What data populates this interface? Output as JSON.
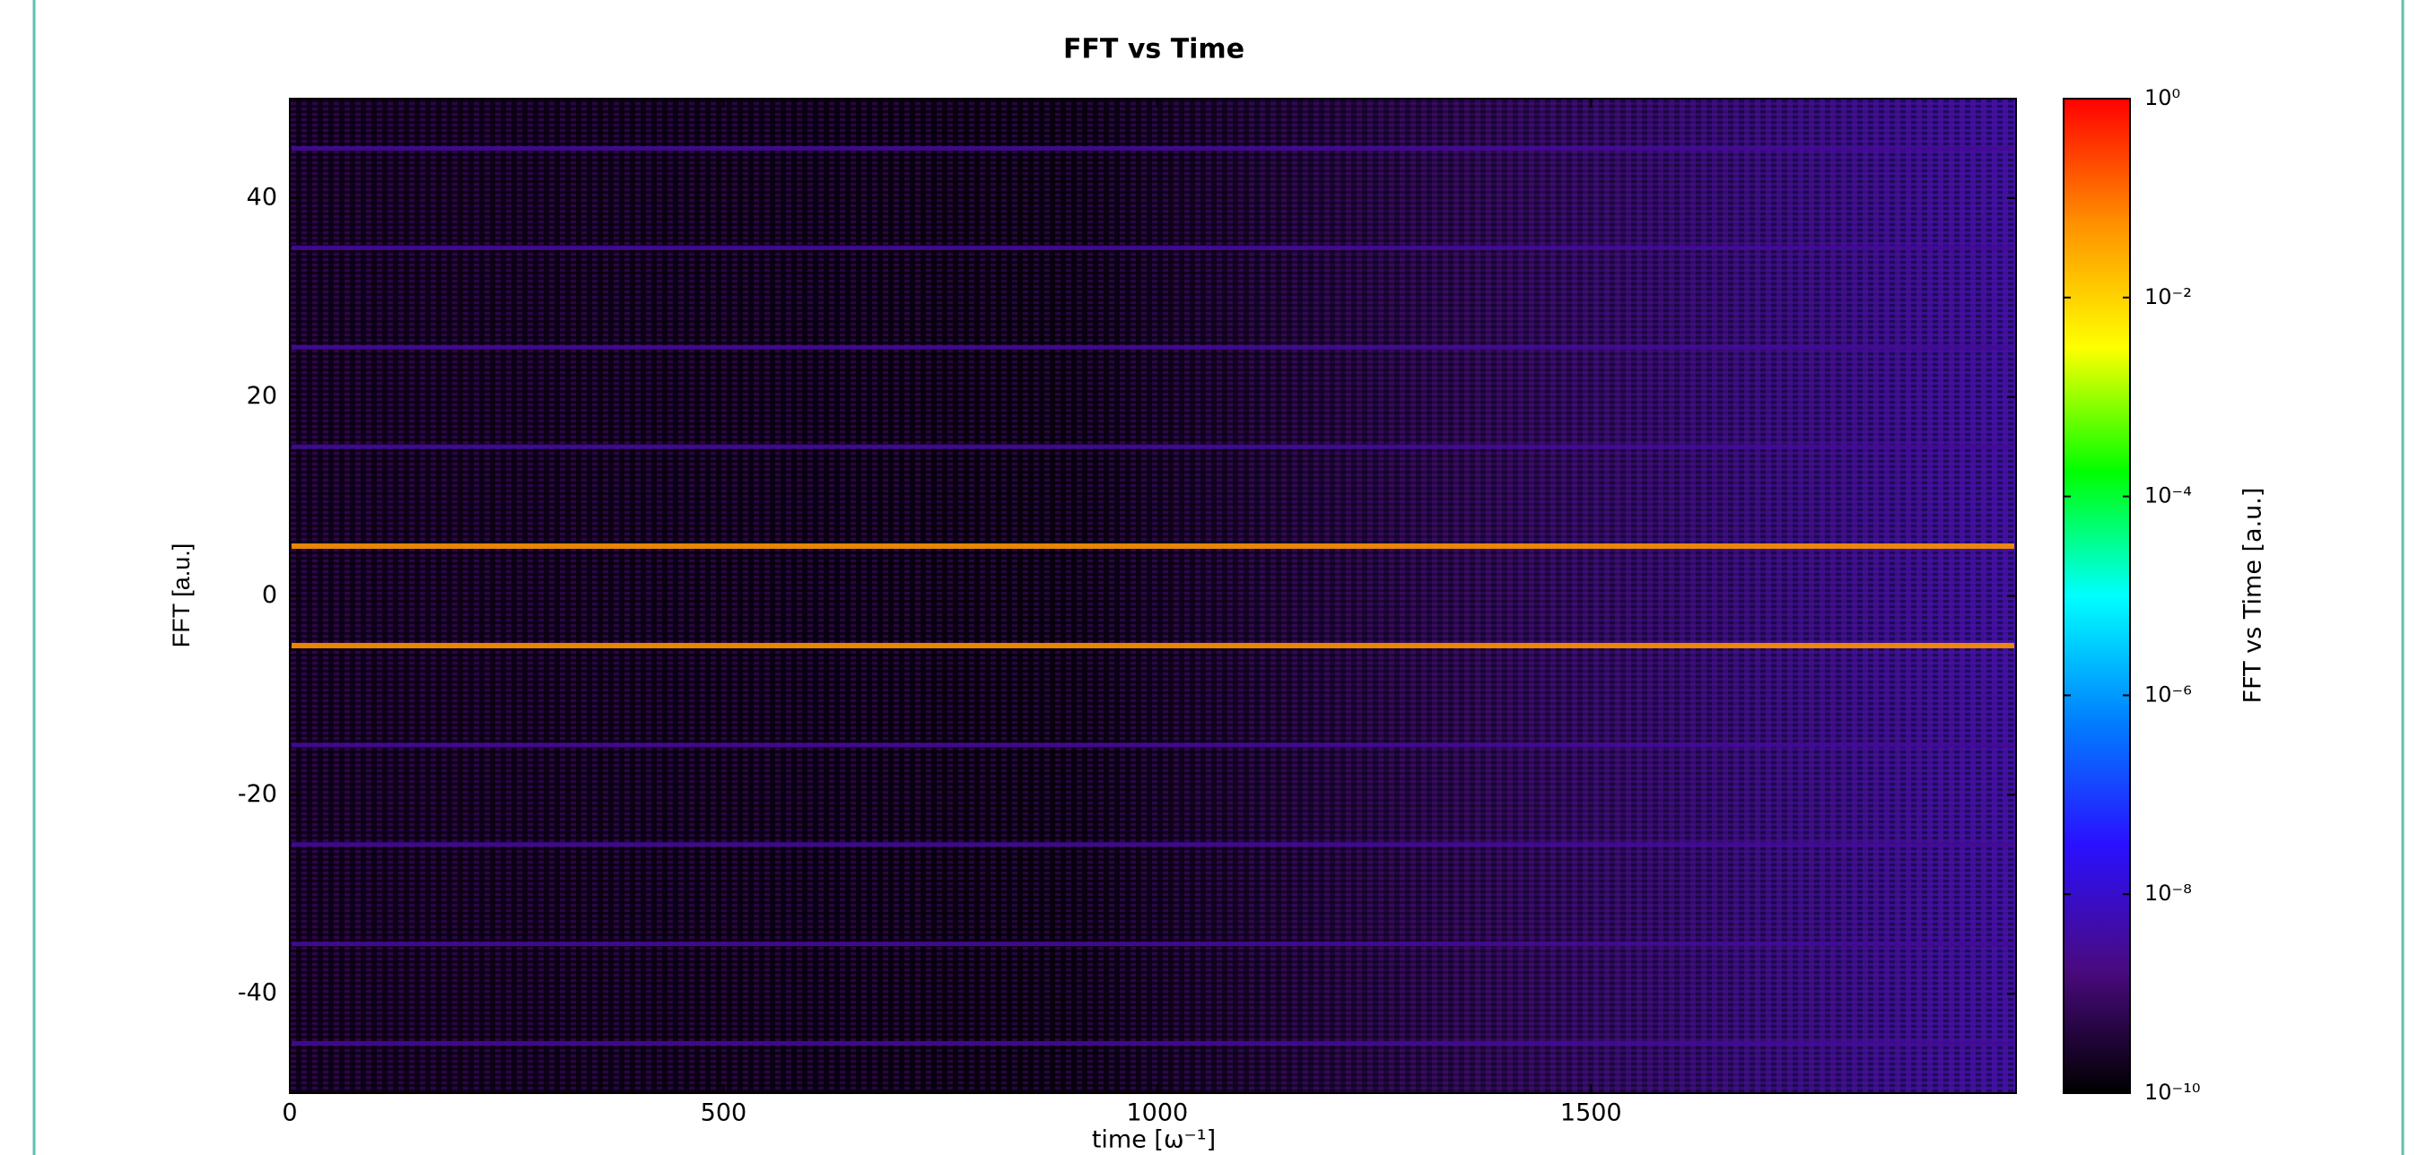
{
  "chart_data": {
    "type": "heatmap",
    "title": "FFT vs Time",
    "x_label": "time [ω⁻¹]",
    "y_label": "FFT [a.u.]",
    "colorbar_label": "FFT vs Time [a.u.]",
    "xlim": [
      0,
      1990
    ],
    "xticks": [
      0,
      500,
      1000,
      1500
    ],
    "ylim": [
      -50,
      50
    ],
    "yticks": [
      -40,
      -20,
      0,
      20,
      40
    ],
    "y": [
      45,
      35,
      25,
      15,
      5,
      -5,
      -15,
      -25,
      -35,
      -45
    ],
    "values": [
      3e-09,
      3e-09,
      3e-09,
      3e-09,
      0.05,
      0.05,
      3e-09,
      3e-09,
      3e-09,
      3e-09
    ],
    "clim": [
      1e-10,
      1
    ],
    "log_scale": true,
    "cticks": [
      {
        "value": 1,
        "label": "10⁰"
      },
      {
        "value": 0.01,
        "label": "10⁻²"
      },
      {
        "value": 0.0001,
        "label": "10⁻⁴"
      },
      {
        "value": 1e-06,
        "label": "10⁻⁶"
      },
      {
        "value": 1e-08,
        "label": "10⁻⁸"
      },
      {
        "value": 1e-10,
        "label": "10⁻¹⁰"
      }
    ],
    "colormap": [
      "#000000",
      "#4a0a80",
      "#2a10ff",
      "#0080ff",
      "#00ffff",
      "#00ff00",
      "#ffff00",
      "#ff9000",
      "#ff0000"
    ]
  }
}
